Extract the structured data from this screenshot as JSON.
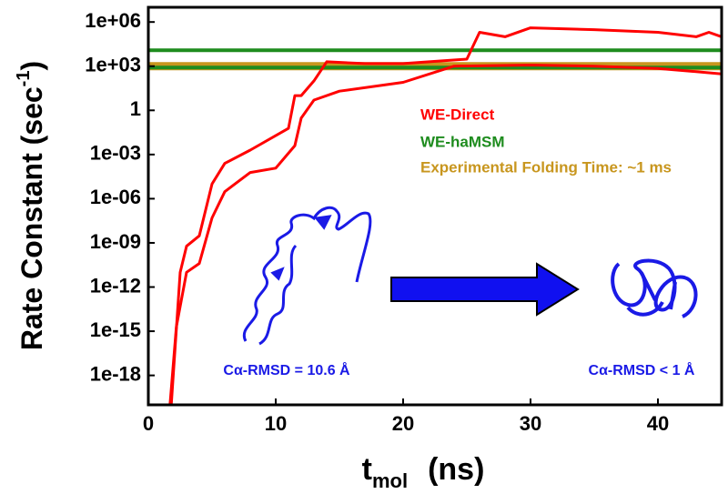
{
  "chart_data": {
    "type": "line",
    "yscale": "log",
    "x_label": {
      "main": "t",
      "subscript": "mol",
      "unit": "(ns)"
    },
    "y_label": {
      "main": "Rate Constant  (sec",
      "superscript": "-1",
      "suffix": ")"
    },
    "xlim": [
      0,
      45
    ],
    "xticks": [
      0,
      10,
      20,
      30,
      40
    ],
    "ylim": [
      1e-20,
      10000000.0
    ],
    "yticks": [
      {
        "value": 1e-18,
        "label": "1e-18"
      },
      {
        "value": 1e-15,
        "label": "1e-15"
      },
      {
        "value": 1e-12,
        "label": "1e-12"
      },
      {
        "value": 1e-09,
        "label": "1e-09"
      },
      {
        "value": 1e-06,
        "label": "1e-06"
      },
      {
        "value": 0.001,
        "label": "1e-03"
      },
      1,
      {
        "value": 1000.0,
        "label": "1e+03"
      },
      {
        "value": 1000000.0,
        "label": "1e+06"
      }
    ],
    "series": [
      {
        "name": "WE-Direct",
        "color": "#ff0000",
        "curves": [
          {
            "x": [
              1.8,
              2.5,
              3,
              4,
              5,
              6,
              8,
              11,
              11.5,
              12,
              13,
              14,
              17,
              20,
              25,
              26,
              28,
              30,
              35,
              40,
              43,
              44,
              45
            ],
            "values": [
              1e-20,
              1e-11,
              6e-10,
              3e-09,
              1e-05,
              0.00025,
              0.002,
              0.06,
              10,
              10,
              100,
              2000,
              1500,
              1500,
              3000,
              200000.0,
              100000.0,
              400000.0,
              300000.0,
              200000.0,
              100000.0,
              200000.0,
              100000.0
            ]
          },
          {
            "x": [
              1.7,
              2.2,
              3,
              4,
              5,
              6,
              8,
              10,
              11.5,
              12,
              13,
              15,
              20,
              24,
              30,
              35,
              40,
              45
            ],
            "values": [
              1e-20,
              2e-15,
              1e-11,
              4e-11,
              5e-08,
              3e-06,
              6e-05,
              0.00012,
              0.004,
              0.3,
              5,
              20,
              80,
              1000,
              1200,
              1000,
              700,
              300
            ]
          }
        ]
      },
      {
        "name": "WE-haMSM",
        "color": "#1e8c1e",
        "values": [
          12000,
          800
        ]
      },
      {
        "name": "Experimental Folding Time:  ~1 ms",
        "color": "#c8961e",
        "values": [
          1000
        ]
      }
    ],
    "annotations": [
      "Cα-RMSD = 10.6 Å",
      "Cα-RMSD < 1 Å"
    ]
  }
}
